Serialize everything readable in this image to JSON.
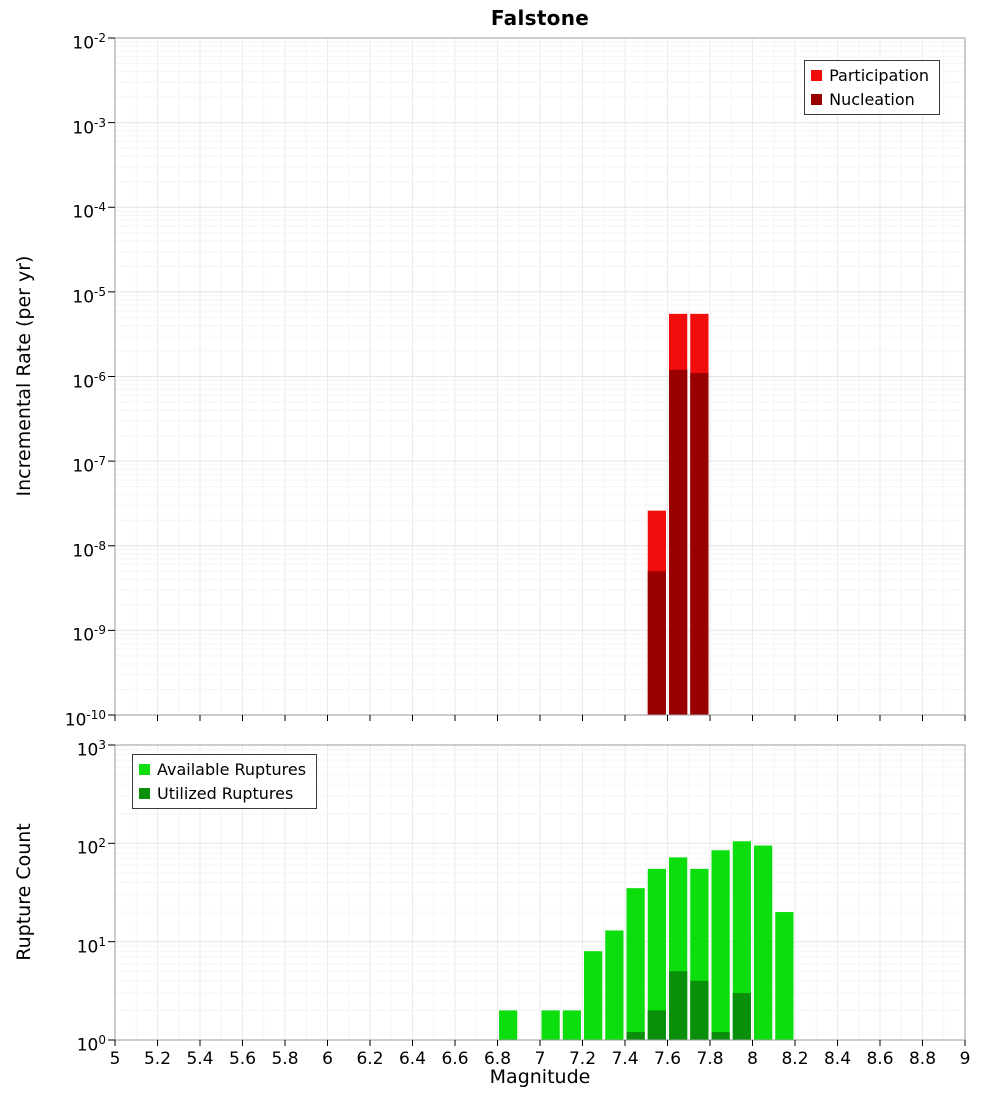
{
  "title": "Falstone",
  "axes": {
    "x_label": "Magnitude",
    "x_ticks": [
      5,
      5.2,
      5.4,
      5.6,
      5.8,
      6,
      6.2,
      6.4,
      6.6,
      6.8,
      7,
      7.2,
      7.4,
      7.6,
      7.8,
      8,
      8.2,
      8.4,
      8.6,
      8.8,
      9
    ],
    "x_tick_labels": [
      "5",
      "5.2",
      "5.4",
      "5.6",
      "5.8",
      "6",
      "6.2",
      "6.4",
      "6.6",
      "6.8",
      "7",
      "7.2",
      "7.4",
      "7.6",
      "7.8",
      "8",
      "8.2",
      "8.4",
      "8.6",
      "8.8",
      "9"
    ]
  },
  "chart_data": [
    {
      "type": "bar",
      "title": "Falstone",
      "xlabel": "Magnitude",
      "ylabel": "Incremental Rate (per yr)",
      "y_scale": "log",
      "grid": true,
      "xlim": [
        5,
        9
      ],
      "ylim": [
        1e-10,
        0.01
      ],
      "ylim_exponents": [
        -10,
        -2
      ],
      "y_tick_exponents": [
        -2,
        -3,
        -4,
        -5,
        -6,
        -7,
        -8,
        -9,
        -10
      ],
      "bin_width": 0.1,
      "legend_position": "top-right",
      "series": [
        {
          "name": "Participation",
          "color": "#f20d0d",
          "bins": [
            7.5,
            7.6,
            7.7
          ],
          "values": [
            2.6e-08,
            5.5e-06,
            5.5e-06
          ]
        },
        {
          "name": "Nucleation",
          "color": "#9b0000",
          "bins": [
            7.5,
            7.6,
            7.7
          ],
          "values": [
            5e-09,
            1.2e-06,
            1.1e-06
          ]
        }
      ]
    },
    {
      "type": "bar",
      "title": "",
      "xlabel": "Magnitude",
      "ylabel": "Rupture Count",
      "y_scale": "log",
      "grid": true,
      "xlim": [
        5,
        9
      ],
      "ylim": [
        1,
        1000
      ],
      "ylim_exponents": [
        0,
        3
      ],
      "y_tick_exponents": [
        0,
        1,
        2,
        3
      ],
      "bin_width": 0.1,
      "legend_position": "top-left",
      "series": [
        {
          "name": "Available Ruptures",
          "color": "#0cdd0c",
          "bins": [
            6.8,
            7,
            7.1,
            7.2,
            7.3,
            7.4,
            7.5,
            7.6,
            7.7,
            7.8,
            7.9,
            8,
            8.1
          ],
          "values": [
            2,
            2,
            2,
            8,
            13,
            35,
            55,
            72,
            55,
            85,
            105,
            95,
            20
          ]
        },
        {
          "name": "Utilized Ruptures",
          "color": "#0a8f0a",
          "bins": [
            7.4,
            7.5,
            7.6,
            7.7,
            7.8,
            7.9
          ],
          "values": [
            1,
            2,
            5,
            4,
            1,
            3
          ]
        }
      ]
    }
  ]
}
